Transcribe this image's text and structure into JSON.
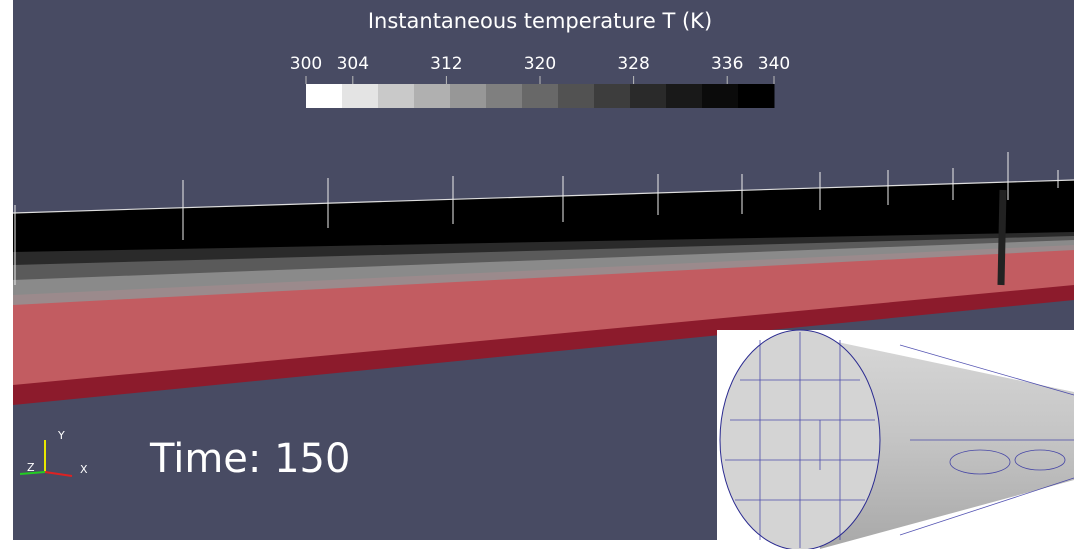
{
  "colorbar": {
    "title": "Instantaneous temperature T (K)",
    "range": [
      300,
      340
    ],
    "ticks": [
      300,
      304,
      312,
      320,
      328,
      336,
      340
    ],
    "band_colors": [
      "#ffffff",
      "#e4e4e4",
      "#c9c9c9",
      "#b0b0b0",
      "#979797",
      "#7f7f7f",
      "#686868",
      "#525252",
      "#3d3d3d",
      "#2a2a2a",
      "#191919",
      "#0b0b0b",
      "#000000"
    ]
  },
  "time_label": "Time: 150",
  "axes": {
    "y": "Y",
    "z": "Z",
    "x": "X"
  }
}
